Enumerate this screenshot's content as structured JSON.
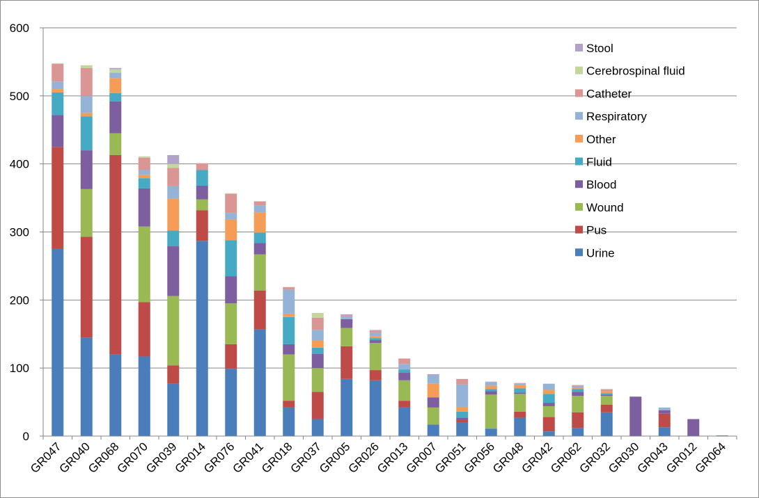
{
  "chart_data": {
    "type": "bar",
    "stacked": true,
    "title": "",
    "xlabel": "",
    "ylabel": "",
    "ylim": [
      0,
      600
    ],
    "yticks": [
      0,
      100,
      200,
      300,
      400,
      500,
      600
    ],
    "grid": true,
    "legend_position": "top-right",
    "categories": [
      "GR047",
      "GR040",
      "GR068",
      "GR070",
      "GR039",
      "GR014",
      "GR076",
      "GR041",
      "GR018",
      "GR037",
      "GR005",
      "GR026",
      "GR013",
      "GR007",
      "GR051",
      "GR056",
      "GR048",
      "GR042",
      "GR062",
      "GR032",
      "GR030",
      "GR043",
      "GR012",
      "GR064"
    ],
    "series": [
      {
        "name": "Urine",
        "color": "#4a7ebb",
        "values": [
          275,
          145,
          120,
          117,
          77,
          287,
          99,
          157,
          42,
          25,
          84,
          82,
          42,
          17,
          20,
          11,
          27,
          7,
          12,
          35,
          0,
          13,
          0,
          1
        ]
      },
      {
        "name": "Pus",
        "color": "#be4b48",
        "values": [
          150,
          148,
          293,
          80,
          27,
          45,
          36,
          57,
          10,
          40,
          48,
          15,
          10,
          0,
          4,
          0,
          9,
          21,
          23,
          11,
          0,
          20,
          0,
          0
        ]
      },
      {
        "name": "Wound",
        "color": "#98b954",
        "values": [
          0,
          70,
          32,
          111,
          102,
          16,
          60,
          53,
          68,
          35,
          27,
          40,
          30,
          25,
          0,
          50,
          26,
          16,
          24,
          13,
          0,
          0,
          0,
          0
        ]
      },
      {
        "name": "Blood",
        "color": "#7d5fa0",
        "values": [
          47,
          57,
          47,
          56,
          73,
          20,
          40,
          17,
          15,
          21,
          13,
          4,
          11,
          15,
          3,
          5,
          2,
          5,
          6,
          2,
          58,
          5,
          25,
          0
        ]
      },
      {
        "name": "Fluid",
        "color": "#46aac5",
        "values": [
          33,
          50,
          12,
          15,
          23,
          23,
          53,
          15,
          40,
          9,
          0,
          3,
          5,
          0,
          9,
          3,
          6,
          13,
          4,
          2,
          0,
          0,
          0,
          0
        ]
      },
      {
        "name": "Other",
        "color": "#f59d56",
        "values": [
          5,
          5,
          22,
          5,
          47,
          0,
          30,
          30,
          5,
          11,
          0,
          3,
          0,
          20,
          7,
          5,
          5,
          6,
          2,
          3,
          0,
          0,
          0,
          0
        ]
      },
      {
        "name": "Respiratory",
        "color": "#95b3d7",
        "values": [
          11,
          25,
          8,
          7,
          19,
          0,
          10,
          10,
          35,
          15,
          3,
          5,
          8,
          12,
          33,
          5,
          2,
          9,
          3,
          0,
          0,
          4,
          0,
          0
        ]
      },
      {
        "name": "Catheter",
        "color": "#d99694",
        "values": [
          26,
          41,
          0,
          18,
          26,
          10,
          28,
          6,
          4,
          18,
          2,
          3,
          8,
          0,
          8,
          0,
          1,
          0,
          1,
          3,
          0,
          0,
          0,
          0
        ]
      },
      {
        "name": "Cerebrospinal fluid",
        "color": "#c3d69b",
        "values": [
          1,
          4,
          5,
          2,
          6,
          0,
          1,
          0,
          0,
          7,
          0,
          0,
          0,
          0,
          0,
          0,
          0,
          0,
          0,
          0,
          0,
          0,
          0,
          0
        ]
      },
      {
        "name": "Stool",
        "color": "#b3a2c7",
        "values": [
          0,
          0,
          2,
          0,
          13,
          0,
          0,
          0,
          0,
          0,
          2,
          1,
          0,
          2,
          0,
          1,
          0,
          0,
          0,
          0,
          0,
          0,
          0,
          0
        ]
      }
    ]
  }
}
